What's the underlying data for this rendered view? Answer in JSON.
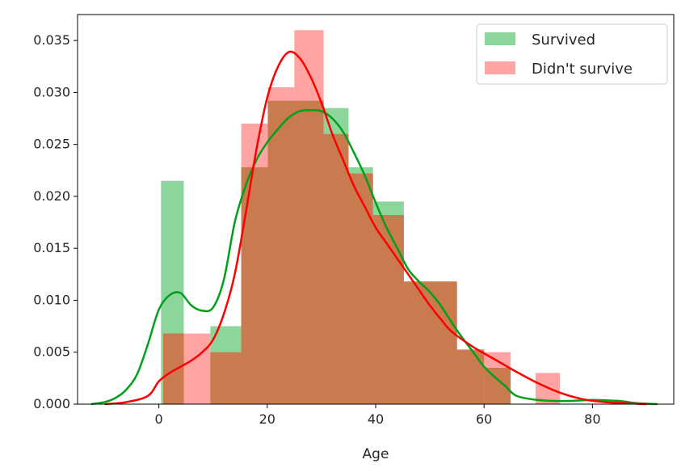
{
  "chart_data": {
    "type": "bar",
    "subtype": "histogram-with-kde",
    "xlabel": "Age",
    "ylabel": "",
    "xlim": [
      -15,
      95
    ],
    "ylim": [
      0,
      0.0375
    ],
    "xticks": [
      0,
      20,
      40,
      60,
      80
    ],
    "yticks": [
      0.0,
      0.005,
      0.01,
      0.015,
      0.02,
      0.025,
      0.03,
      0.035
    ],
    "ytick_labels": [
      "0.000",
      "0.005",
      "0.010",
      "0.015",
      "0.020",
      "0.025",
      "0.030",
      "0.035"
    ],
    "legend_position": "top-right",
    "colors": {
      "survived_fill": "#7fd190",
      "survived_line": "#00a01a",
      "not_survived_fill": "#ff8c8c",
      "not_survived_line": "#ff0000",
      "overlap_fill": "#c97a4f"
    },
    "series": [
      {
        "name": "Survived",
        "bins": [
          {
            "x0": 0.4,
            "x1": 4.6,
            "y": 0.0215
          },
          {
            "x0": 4.6,
            "x1": 9.5,
            "y": 0.0
          },
          {
            "x0": 9.5,
            "x1": 15.2,
            "y": 0.0075
          },
          {
            "x0": 15.2,
            "x1": 20.1,
            "y": 0.0228
          },
          {
            "x0": 20.1,
            "x1": 25.0,
            "y": 0.0292
          },
          {
            "x0": 25.0,
            "x1": 30.4,
            "y": 0.0292
          },
          {
            "x0": 30.4,
            "x1": 35.0,
            "y": 0.0285
          },
          {
            "x0": 35.0,
            "x1": 39.5,
            "y": 0.0228
          },
          {
            "x0": 39.5,
            "x1": 45.2,
            "y": 0.0195
          },
          {
            "x0": 45.2,
            "x1": 50.2,
            "y": 0.0118
          },
          {
            "x0": 50.2,
            "x1": 55.0,
            "y": 0.0118
          },
          {
            "x0": 55.0,
            "x1": 60.0,
            "y": 0.0052
          },
          {
            "x0": 60.0,
            "x1": 64.9,
            "y": 0.0035
          },
          {
            "x0": 64.9,
            "x1": 75.0,
            "y": 0.0
          }
        ],
        "kde": {
          "x": [
            -12.5,
            -10,
            -8,
            -6,
            -4,
            -2,
            0,
            2,
            4,
            6,
            8,
            10,
            12,
            14,
            16,
            18,
            20,
            22,
            24,
            26,
            28,
            30,
            32,
            34,
            36,
            38,
            40,
            42,
            44,
            46,
            48,
            50,
            52,
            55,
            58,
            60,
            62,
            64,
            66,
            70,
            75,
            80,
            85,
            88,
            92
          ],
          "y": [
            0.0,
            0.0002,
            0.0006,
            0.0014,
            0.0029,
            0.0058,
            0.0091,
            0.0105,
            0.0107,
            0.0095,
            0.009,
            0.0093,
            0.012,
            0.0175,
            0.021,
            0.0235,
            0.0252,
            0.0265,
            0.0276,
            0.0282,
            0.0283,
            0.0282,
            0.0275,
            0.0262,
            0.0242,
            0.022,
            0.0194,
            0.017,
            0.015,
            0.013,
            0.0118,
            0.0108,
            0.0095,
            0.0071,
            0.005,
            0.0036,
            0.0026,
            0.0017,
            0.0008,
            0.0004,
            0.0003,
            0.0004,
            0.0003,
            0.0001,
            0.0
          ]
        }
      },
      {
        "name": "Didn't survive",
        "bins": [
          {
            "x0": 0.8,
            "x1": 4.6,
            "y": 0.0068
          },
          {
            "x0": 4.6,
            "x1": 9.5,
            "y": 0.0068
          },
          {
            "x0": 9.5,
            "x1": 15.2,
            "y": 0.005
          },
          {
            "x0": 15.2,
            "x1": 20.1,
            "y": 0.027
          },
          {
            "x0": 20.1,
            "x1": 25.0,
            "y": 0.0305
          },
          {
            "x0": 25.0,
            "x1": 30.4,
            "y": 0.036
          },
          {
            "x0": 30.4,
            "x1": 35.0,
            "y": 0.026
          },
          {
            "x0": 35.0,
            "x1": 39.5,
            "y": 0.0222
          },
          {
            "x0": 39.5,
            "x1": 45.2,
            "y": 0.0182
          },
          {
            "x0": 45.2,
            "x1": 50.2,
            "y": 0.0118
          },
          {
            "x0": 50.2,
            "x1": 55.0,
            "y": 0.0118
          },
          {
            "x0": 55.0,
            "x1": 60.0,
            "y": 0.0053
          },
          {
            "x0": 60.0,
            "x1": 64.9,
            "y": 0.005
          },
          {
            "x0": 64.9,
            "x1": 69.5,
            "y": 0.0
          },
          {
            "x0": 69.5,
            "x1": 74.0,
            "y": 0.003
          }
        ],
        "kde": {
          "x": [
            -10,
            -6,
            -2,
            0,
            2,
            4,
            6,
            8,
            10,
            12,
            14,
            16,
            18,
            20,
            22,
            24,
            26,
            28,
            30,
            32,
            34,
            36,
            38,
            40,
            42,
            44,
            46,
            48,
            50,
            52,
            54,
            58,
            62,
            66,
            70,
            74,
            78,
            82,
            86,
            90
          ],
          "y": [
            0.0,
            0.0002,
            0.0008,
            0.0022,
            0.003,
            0.0036,
            0.0042,
            0.005,
            0.0062,
            0.0087,
            0.0125,
            0.0183,
            0.0245,
            0.0295,
            0.0325,
            0.0339,
            0.0333,
            0.0315,
            0.029,
            0.026,
            0.0235,
            0.021,
            0.019,
            0.017,
            0.0155,
            0.014,
            0.0125,
            0.011,
            0.0095,
            0.0082,
            0.007,
            0.0055,
            0.0043,
            0.0031,
            0.002,
            0.0011,
            0.0005,
            0.0002,
            0.0001,
            0.0
          ]
        }
      }
    ]
  }
}
